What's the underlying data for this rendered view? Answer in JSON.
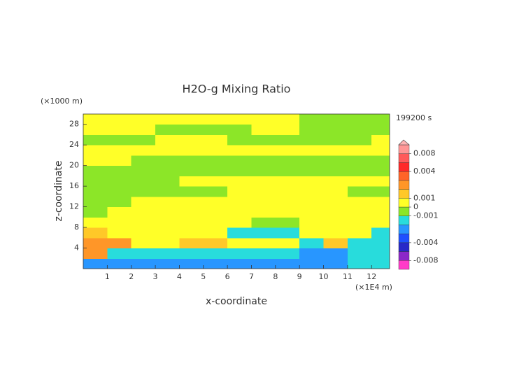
{
  "chart_data": {
    "type": "contour",
    "title": "H2O-g Mixing Ratio",
    "x_label": "x-coordinate",
    "y_label": "z-coordinate",
    "x_unit": "(×1E4 m)",
    "y_unit": "(×1000 m)",
    "time_label": "199200 s",
    "xlim": [
      0,
      12.75
    ],
    "ylim": [
      0,
      30
    ],
    "xticks": [
      1,
      2,
      3,
      4,
      5,
      6,
      7,
      8,
      9,
      10,
      11,
      12
    ],
    "yticks": [
      4,
      8,
      12,
      16,
      20,
      24,
      28
    ],
    "x": [
      0.5,
      1.5,
      2.5,
      3.5,
      4.5,
      5.5,
      6.5,
      7.5,
      8.5,
      9.5,
      10.5,
      11.5,
      12.5
    ],
    "y": [
      1,
      3,
      5,
      7,
      9,
      11,
      13,
      15,
      17,
      19,
      21,
      23,
      25,
      27,
      29
    ],
    "z": [
      [
        -0.0025,
        -0.0025,
        -0.0025,
        -0.0025,
        -0.0025,
        -0.0025,
        -0.0025,
        -0.0025,
        -0.0025,
        -0.0025,
        -0.0025,
        -0.0015,
        -0.0015
      ],
      [
        0.0025,
        -0.0015,
        -0.0015,
        -0.0015,
        -0.0015,
        -0.0015,
        -0.0015,
        -0.0015,
        -0.0015,
        -0.0025,
        -0.0025,
        -0.0015,
        -0.0015
      ],
      [
        0.0025,
        0.0025,
        0.0005,
        0.0005,
        0.0015,
        0.0015,
        0.0005,
        0.0005,
        0.0005,
        -0.0015,
        0.0015,
        -0.0015,
        -0.0015
      ],
      [
        0.0015,
        0.0005,
        0.0005,
        0.0005,
        0.0005,
        0.0005,
        -0.0015,
        -0.0015,
        -0.0015,
        0.0005,
        0.0005,
        0.0005,
        -0.0015
      ],
      [
        0.0005,
        0.0005,
        0.0005,
        0.0005,
        0.0005,
        0.0005,
        0.0005,
        -0.0005,
        -0.0005,
        0.0005,
        0.0005,
        0.0005,
        0.0005
      ],
      [
        -0.0005,
        0.0005,
        0.0005,
        0.0005,
        0.0005,
        0.0005,
        0.0005,
        0.0005,
        0.0005,
        0.0005,
        0.0005,
        0.0005,
        0.0005
      ],
      [
        -0.0005,
        -0.0005,
        0.0005,
        0.0005,
        0.0005,
        0.0005,
        0.0005,
        0.0005,
        0.0005,
        0.0005,
        0.0005,
        0.0005,
        0.0005
      ],
      [
        -0.0005,
        -0.0005,
        -0.0005,
        -0.0005,
        -0.0005,
        -0.0005,
        0.0005,
        0.0005,
        0.0005,
        0.0005,
        0.0005,
        -0.0005,
        -0.0005
      ],
      [
        -0.0005,
        -0.0005,
        -0.0005,
        -0.0005,
        0.0005,
        0.0005,
        0.0005,
        0.0005,
        0.0005,
        0.0005,
        0.0005,
        0.0005,
        0.0005
      ],
      [
        -0.0005,
        -0.0005,
        -0.0005,
        -0.0005,
        -0.0005,
        -0.0005,
        -0.0005,
        -0.0005,
        -0.0005,
        -0.0005,
        -0.0005,
        -0.0005,
        -0.0005
      ],
      [
        0.0005,
        0.0005,
        -0.0005,
        -0.0005,
        -0.0005,
        -0.0005,
        -0.0005,
        -0.0005,
        -0.0005,
        -0.0005,
        -0.0005,
        -0.0005,
        -0.0005
      ],
      [
        0.0005,
        0.0005,
        0.0005,
        0.0005,
        0.0005,
        0.0005,
        0.0005,
        0.0005,
        0.0005,
        0.0005,
        0.0005,
        0.0005,
        0.0005
      ],
      [
        -0.0005,
        -0.0005,
        -0.0005,
        0.0005,
        0.0005,
        0.0005,
        -0.0005,
        -0.0005,
        -0.0005,
        -0.0005,
        -0.0005,
        -0.0005,
        0.0005
      ],
      [
        0.0005,
        0.0005,
        0.0005,
        -0.0005,
        -0.0005,
        -0.0005,
        -0.0005,
        0.0005,
        0.0005,
        -0.0005,
        -0.0005,
        -0.0005,
        -0.0005
      ],
      [
        0.0005,
        0.0005,
        0.0005,
        0.0005,
        0.0005,
        0.0005,
        0.0005,
        0.0005,
        0.0005,
        -0.0005,
        -0.0005,
        -0.0005,
        -0.0005
      ]
    ],
    "levels": [
      -0.01,
      -0.008,
      -0.006,
      -0.004,
      -0.003,
      -0.002,
      -0.001,
      0,
      0.001,
      0.002,
      0.003,
      0.004,
      0.006,
      0.008,
      0.01
    ],
    "colors": [
      "#ff3cc8",
      "#8c28c8",
      "#2828c8",
      "#1e50ff",
      "#2896ff",
      "#28dcdc",
      "#8ce628",
      "#ffff28",
      "#ffc828",
      "#ff9628",
      "#ff6428",
      "#ff2828",
      "#ff5a5a",
      "#ff9696"
    ],
    "colorbar_ticks": [
      0.008,
      0.004,
      0.001,
      0,
      -0.001,
      -0.004,
      -0.008
    ]
  }
}
